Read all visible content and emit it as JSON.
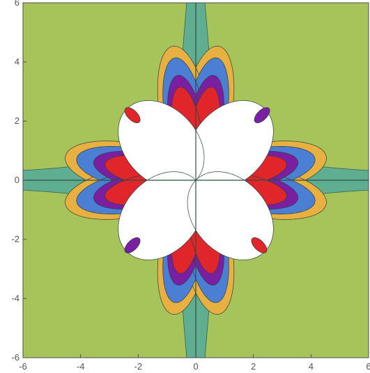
{
  "chart_data": {
    "type": "contour",
    "title": "",
    "xlabel": "",
    "ylabel": "",
    "xlim": [
      -6,
      6
    ],
    "ylim": [
      -6,
      6
    ],
    "x_ticks": [
      -6,
      -4,
      -2,
      0,
      2,
      4,
      6
    ],
    "y_ticks": [
      -6,
      -4,
      -2,
      0,
      2,
      4,
      6
    ],
    "x_tick_labels": [
      "-6",
      "-4",
      "-2",
      "0",
      "2",
      "4",
      "6"
    ],
    "y_tick_labels": [
      "-6",
      "-4",
      "-2",
      "0",
      "2",
      "4",
      "6"
    ],
    "grid": false,
    "legend": "none",
    "color_levels": [
      "#5fae92",
      "#a6c45a",
      "#5fae92",
      "#e8b040",
      "#4a7fd4",
      "#7a1fa2",
      "#e0262a",
      "#ffffff"
    ],
    "level_names": [
      "background",
      "band-light",
      "band-teal",
      "orange",
      "blue",
      "purple",
      "red",
      "white-max"
    ],
    "description": "Four-fold symmetric contour pattern: white lobes near origin in quadrants I and III (angled), nested purple, red, orange, blue bands, surrounded by alternating teal/green hyperbolic stripes."
  }
}
